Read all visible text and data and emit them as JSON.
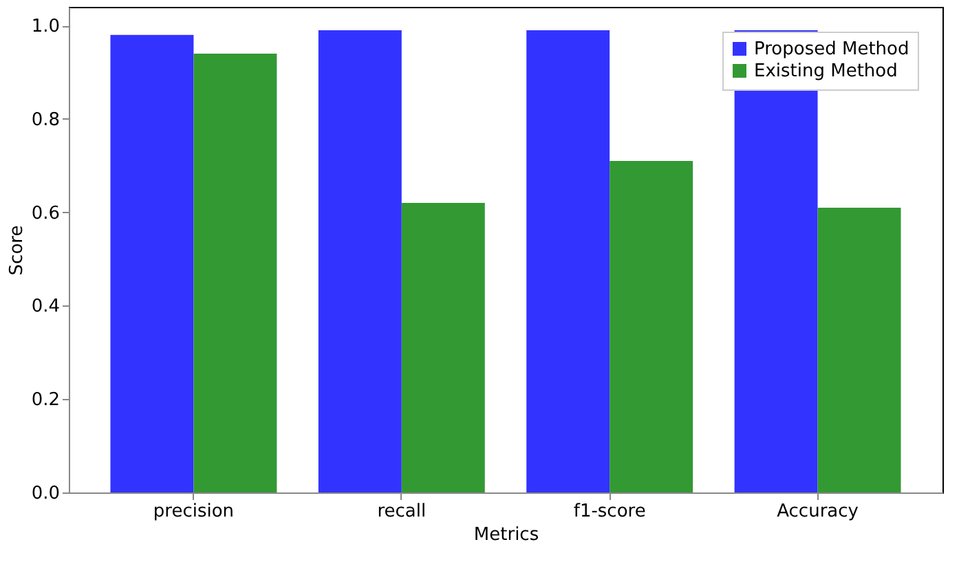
{
  "chart_data": {
    "type": "bar",
    "xlabel": "Metrics",
    "ylabel": "Score",
    "categories": [
      "precision",
      "recall",
      "f1-score",
      "Accuracy"
    ],
    "series": [
      {
        "name": "Proposed Method",
        "color": "#3333ff",
        "values": [
          0.98,
          0.99,
          0.99,
          0.99
        ]
      },
      {
        "name": "Existing Method",
        "color": "#339933",
        "values": [
          0.94,
          0.62,
          0.71,
          0.61
        ]
      }
    ],
    "ylim": [
      0,
      1.04
    ],
    "yticks": [
      {
        "value": 0,
        "label": "0.0"
      },
      {
        "value": 0.2,
        "label": "0.2"
      },
      {
        "value": 0.4,
        "label": "0.4"
      },
      {
        "value": 0.6,
        "label": "0.6"
      },
      {
        "value": 0.8,
        "label": "0.8"
      },
      {
        "value": 1,
        "label": "1.0"
      }
    ],
    "grid": false,
    "legend": "top right"
  }
}
